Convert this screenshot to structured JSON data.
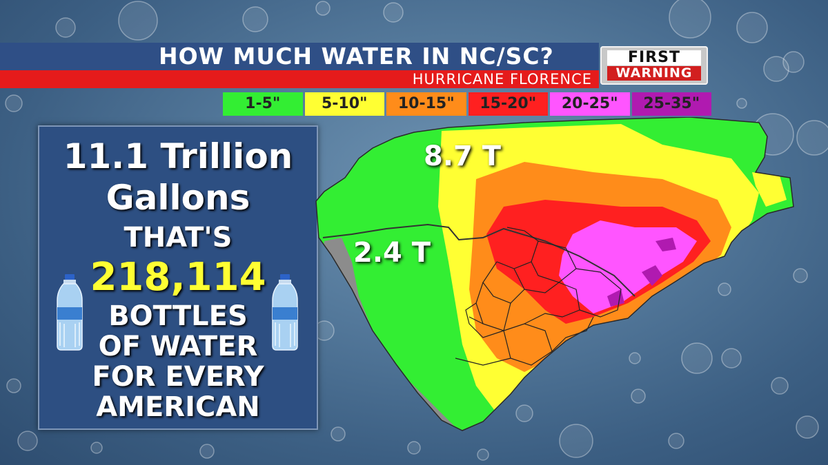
{
  "header": {
    "title": "HOW MUCH WATER IN NC/SC?",
    "subtitle": "HURRICANE FLORENCE",
    "logo_line1": "FIRST",
    "logo_line2": "WARNING"
  },
  "legend": [
    {
      "label": "1-5\"",
      "color": "#33ee33",
      "text_color": "#222222"
    },
    {
      "label": "5-10\"",
      "color": "#ffff33",
      "text_color": "#222222"
    },
    {
      "label": "10-15\"",
      "color": "#ff8c1a",
      "text_color": "#222222"
    },
    {
      "label": "15-20\"",
      "color": "#ff2020",
      "text_color": "#222222"
    },
    {
      "label": "20-25\"",
      "color": "#ff55ff",
      "text_color": "#222222"
    },
    {
      "label": "25-35\"",
      "color": "#b01ab0",
      "text_color": "#222222"
    }
  ],
  "panel": {
    "total": "11.1 Trillion",
    "unit": "Gallons",
    "thats": "THAT'S",
    "number": "218,114",
    "line1": "BOTTLES",
    "line2": "OF WATER",
    "line3": "FOR EVERY",
    "line4": "AMERICAN",
    "number_color": "#ffff33"
  },
  "map": {
    "nc_label": "8.7 T",
    "sc_label": "2.4 T"
  },
  "icons": [
    "water-bottle-icon",
    "water-bottle-icon",
    "first-warning-logo"
  ]
}
